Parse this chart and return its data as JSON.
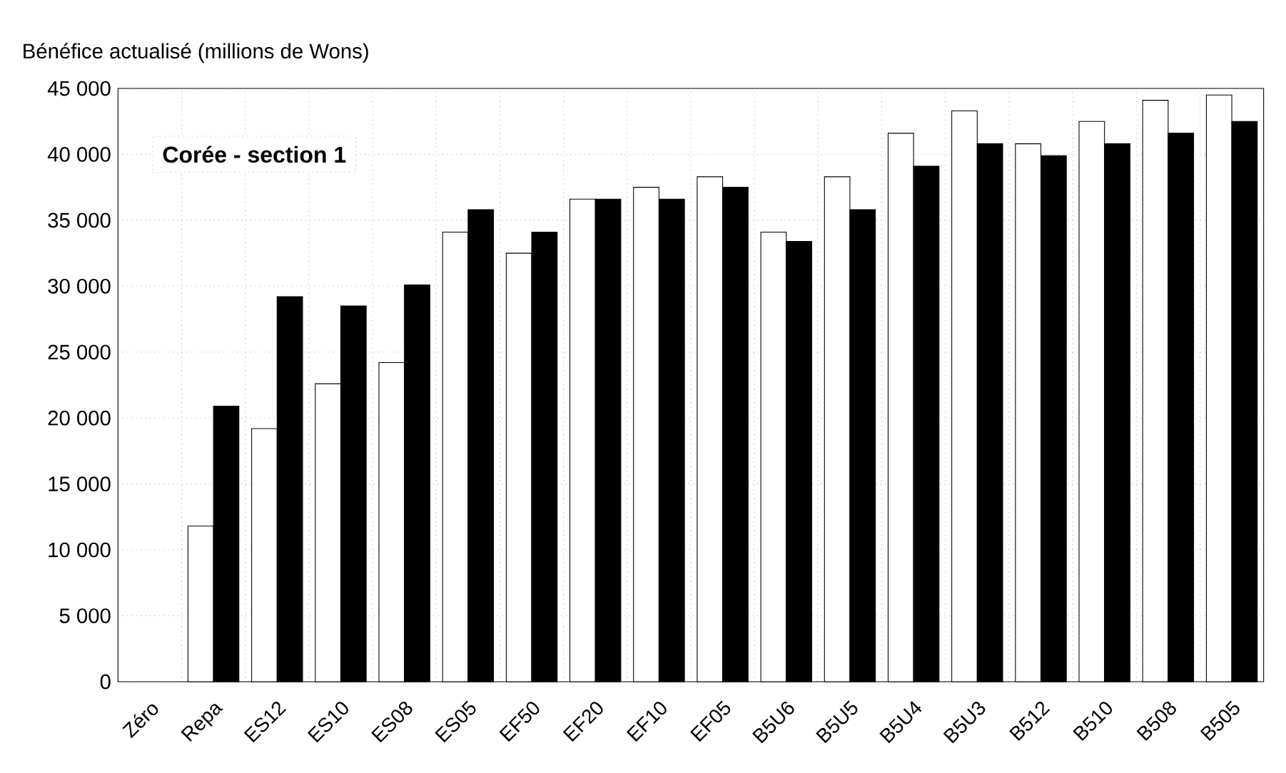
{
  "chart_data": {
    "type": "bar",
    "ylabel": "Bénéfice actualisé (millions de Wons)",
    "annotations": [
      "Corée - section 1"
    ],
    "categories": [
      "Zéro",
      "Repa",
      "ES12",
      "ES10",
      "ES08",
      "ES05",
      "EF50",
      "EF20",
      "EF10",
      "EF05",
      "B5U6",
      "B5U5",
      "B5U4",
      "B5U3",
      "B512",
      "B510",
      "B508",
      "B505"
    ],
    "series": [
      {
        "color": "#ffffff",
        "values": [
          null,
          11800,
          19200,
          22600,
          24200,
          34100,
          32500,
          36600,
          37500,
          38300,
          34100,
          38300,
          41600,
          43300,
          40800,
          42500,
          44100,
          44500
        ]
      },
      {
        "color": "#000000",
        "values": [
          null,
          20900,
          29200,
          28500,
          30100,
          35800,
          34100,
          36600,
          36600,
          37500,
          33400,
          35800,
          39100,
          40800,
          39900,
          40800,
          41600,
          42500
        ]
      }
    ],
    "ylim": [
      0,
      45000
    ],
    "yticks": [
      {
        "value": 0,
        "label": "0"
      },
      {
        "value": 5000,
        "label": "5 000"
      },
      {
        "value": 10000,
        "label": "10 000"
      },
      {
        "value": 15000,
        "label": "15 000"
      },
      {
        "value": 20000,
        "label": "20 000"
      },
      {
        "value": 25000,
        "label": "25 000"
      },
      {
        "value": 30000,
        "label": "30 000"
      },
      {
        "value": 35000,
        "label": "35 000"
      },
      {
        "value": 40000,
        "label": "40 000"
      },
      {
        "value": 45000,
        "label": "45 000"
      }
    ],
    "grid": true
  }
}
